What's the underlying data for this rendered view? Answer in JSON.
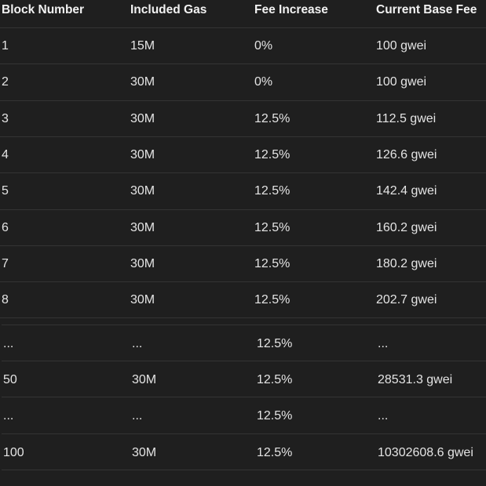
{
  "headers": [
    "Block Number",
    "Included Gas",
    "Fee Increase",
    "Current Base Fee"
  ],
  "rows_a": [
    [
      "1",
      "15M",
      "0%",
      "100 gwei"
    ],
    [
      "2",
      "30M",
      "0%",
      "100 gwei"
    ],
    [
      "3",
      "30M",
      "12.5%",
      "112.5 gwei"
    ],
    [
      "4",
      "30M",
      "12.5%",
      "126.6 gwei"
    ],
    [
      "5",
      "30M",
      "12.5%",
      "142.4 gwei"
    ],
    [
      "6",
      "30M",
      "12.5%",
      "160.2 gwei"
    ],
    [
      "7",
      "30M",
      "12.5%",
      "180.2 gwei"
    ],
    [
      "8",
      "30M",
      "12.5%",
      "202.7 gwei"
    ]
  ],
  "rows_b": [
    [
      "...",
      "...",
      "12.5%",
      "..."
    ],
    [
      "50",
      "30M",
      "12.5%",
      "28531.3 gwei"
    ],
    [
      "...",
      "...",
      "12.5%",
      "..."
    ],
    [
      "100",
      "30M",
      "12.5%",
      "10302608.6 gwei"
    ]
  ]
}
